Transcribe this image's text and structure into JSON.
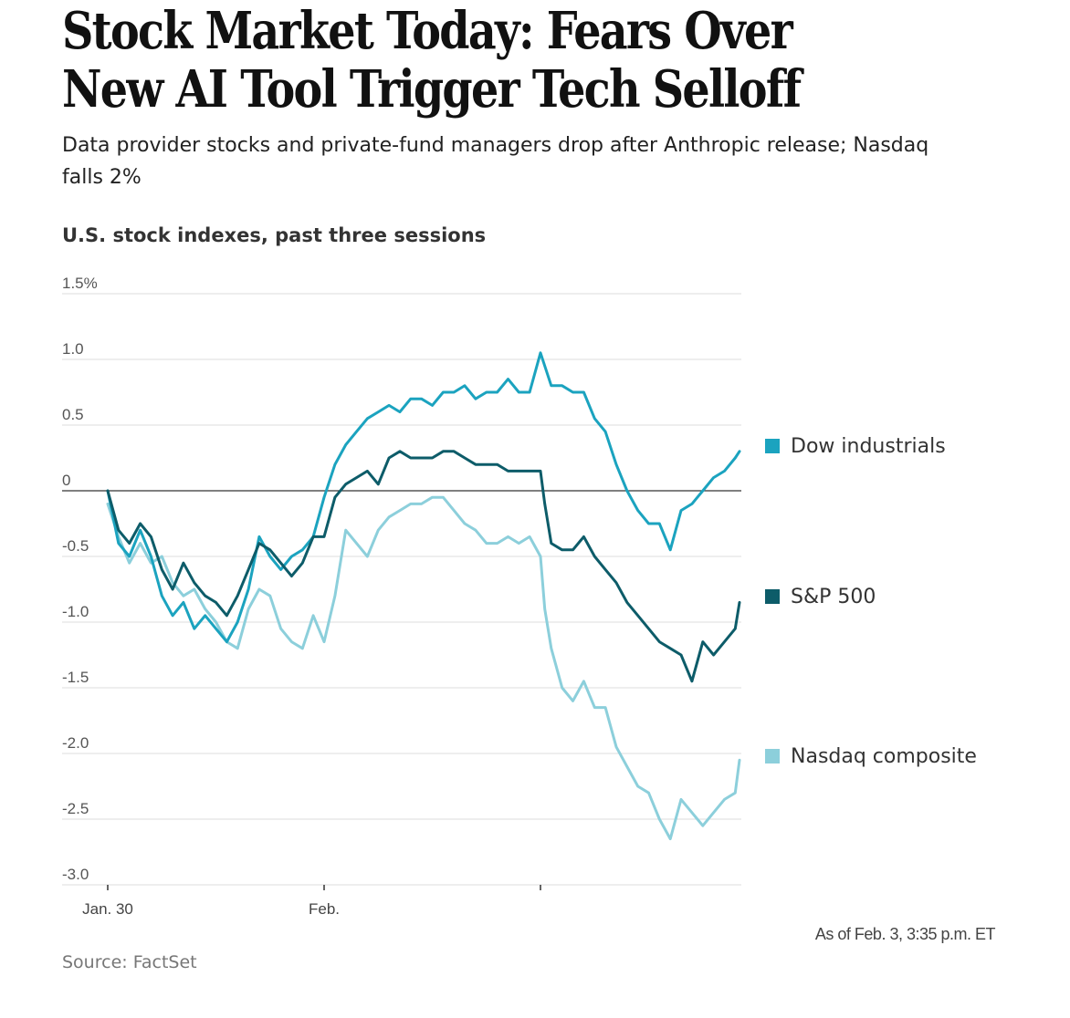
{
  "headline": "Stock Market Today: Fears Over New AI Tool Trigger Tech Selloff",
  "dek": "Data provider stocks and private-fund managers drop after Anthropic release; Nasdaq falls 2%",
  "note": "As of Feb. 3, 3:35 p.m. ET",
  "source": "Source: FactSet",
  "chart_data": {
    "type": "line",
    "title": "U.S. stock indexes, past three sessions",
    "xlabel": "",
    "ylabel": "",
    "ylim": [
      -3.0,
      1.5
    ],
    "yticks": [
      1.5,
      1.0,
      0.5,
      0,
      -0.5,
      -1.0,
      -1.5,
      -2.0,
      -2.5,
      -3.0
    ],
    "ytick_labels": [
      "1.5%",
      "1.0",
      "0.5",
      "0",
      "-0.5",
      "-1.0",
      "-1.5",
      "-2.0",
      "-2.5",
      "-3.0"
    ],
    "xlim": [
      0,
      3
    ],
    "xticks": [
      0,
      1,
      2
    ],
    "xtick_labels": [
      "Jan. 30",
      "Feb.",
      ""
    ],
    "grid": true,
    "legend": "right",
    "series": [
      {
        "name": "Dow industrials",
        "color": "#1ba3bf",
        "x": [
          0,
          0.05,
          0.1,
          0.15,
          0.2,
          0.25,
          0.3,
          0.35,
          0.4,
          0.45,
          0.5,
          0.55,
          0.6,
          0.65,
          0.7,
          0.75,
          0.8,
          0.85,
          0.9,
          0.95,
          1.0,
          1.05,
          1.1,
          1.15,
          1.2,
          1.25,
          1.3,
          1.35,
          1.4,
          1.45,
          1.5,
          1.55,
          1.6,
          1.65,
          1.7,
          1.75,
          1.8,
          1.85,
          1.9,
          1.95,
          2.0,
          2.02,
          2.05,
          2.1,
          2.15,
          2.2,
          2.25,
          2.3,
          2.35,
          2.4,
          2.45,
          2.5,
          2.55,
          2.6,
          2.65,
          2.7,
          2.75,
          2.8,
          2.85,
          2.9,
          2.92
        ],
        "values": [
          0.0,
          -0.4,
          -0.5,
          -0.3,
          -0.5,
          -0.8,
          -0.95,
          -0.85,
          -1.05,
          -0.95,
          -1.05,
          -1.15,
          -1.0,
          -0.75,
          -0.35,
          -0.5,
          -0.6,
          -0.5,
          -0.45,
          -0.35,
          -0.05,
          0.2,
          0.35,
          0.45,
          0.55,
          0.6,
          0.65,
          0.6,
          0.7,
          0.7,
          0.65,
          0.75,
          0.75,
          0.8,
          0.7,
          0.75,
          0.75,
          0.85,
          0.75,
          0.75,
          1.05,
          0.95,
          0.8,
          0.8,
          0.75,
          0.75,
          0.55,
          0.45,
          0.2,
          0.0,
          -0.15,
          -0.25,
          -0.25,
          -0.45,
          -0.15,
          -0.1,
          0.0,
          0.1,
          0.15,
          0.25,
          0.3
        ]
      },
      {
        "name": "S&P 500",
        "color": "#0d5c69",
        "x": [
          0,
          0.05,
          0.1,
          0.15,
          0.2,
          0.25,
          0.3,
          0.35,
          0.4,
          0.45,
          0.5,
          0.55,
          0.6,
          0.65,
          0.7,
          0.75,
          0.8,
          0.85,
          0.9,
          0.95,
          1.0,
          1.05,
          1.1,
          1.15,
          1.2,
          1.25,
          1.3,
          1.35,
          1.4,
          1.45,
          1.5,
          1.55,
          1.6,
          1.65,
          1.7,
          1.75,
          1.8,
          1.85,
          1.9,
          1.95,
          2.0,
          2.02,
          2.05,
          2.1,
          2.15,
          2.2,
          2.25,
          2.3,
          2.35,
          2.4,
          2.45,
          2.5,
          2.55,
          2.6,
          2.65,
          2.7,
          2.75,
          2.8,
          2.85,
          2.9,
          2.92
        ],
        "values": [
          0.0,
          -0.3,
          -0.4,
          -0.25,
          -0.35,
          -0.6,
          -0.75,
          -0.55,
          -0.7,
          -0.8,
          -0.85,
          -0.95,
          -0.8,
          -0.6,
          -0.4,
          -0.45,
          -0.55,
          -0.65,
          -0.55,
          -0.35,
          -0.35,
          -0.05,
          0.05,
          0.1,
          0.15,
          0.05,
          0.25,
          0.3,
          0.25,
          0.25,
          0.25,
          0.3,
          0.3,
          0.25,
          0.2,
          0.2,
          0.2,
          0.15,
          0.15,
          0.15,
          0.15,
          -0.1,
          -0.4,
          -0.45,
          -0.45,
          -0.35,
          -0.5,
          -0.6,
          -0.7,
          -0.85,
          -0.95,
          -1.05,
          -1.15,
          -1.2,
          -1.25,
          -1.45,
          -1.15,
          -1.25,
          -1.15,
          -1.05,
          -0.85
        ]
      },
      {
        "name": "Nasdaq composite",
        "color": "#8ccfdb",
        "x": [
          0,
          0.05,
          0.1,
          0.15,
          0.2,
          0.25,
          0.3,
          0.35,
          0.4,
          0.45,
          0.5,
          0.55,
          0.6,
          0.65,
          0.7,
          0.75,
          0.8,
          0.85,
          0.9,
          0.95,
          1.0,
          1.05,
          1.1,
          1.15,
          1.2,
          1.25,
          1.3,
          1.35,
          1.4,
          1.45,
          1.5,
          1.55,
          1.6,
          1.65,
          1.7,
          1.75,
          1.8,
          1.85,
          1.9,
          1.95,
          2.0,
          2.02,
          2.05,
          2.1,
          2.15,
          2.2,
          2.25,
          2.3,
          2.35,
          2.4,
          2.45,
          2.5,
          2.55,
          2.6,
          2.65,
          2.7,
          2.75,
          2.8,
          2.85,
          2.9,
          2.92
        ],
        "values": [
          -0.1,
          -0.35,
          -0.55,
          -0.4,
          -0.55,
          -0.5,
          -0.7,
          -0.8,
          -0.75,
          -0.9,
          -1.0,
          -1.15,
          -1.2,
          -0.9,
          -0.75,
          -0.8,
          -1.05,
          -1.15,
          -1.2,
          -0.95,
          -1.15,
          -0.8,
          -0.3,
          -0.4,
          -0.5,
          -0.3,
          -0.2,
          -0.15,
          -0.1,
          -0.1,
          -0.05,
          -0.05,
          -0.15,
          -0.25,
          -0.3,
          -0.4,
          -0.4,
          -0.35,
          -0.4,
          -0.35,
          -0.5,
          -0.9,
          -1.2,
          -1.5,
          -1.6,
          -1.45,
          -1.65,
          -1.65,
          -1.95,
          -2.1,
          -2.25,
          -2.3,
          -2.5,
          -2.65,
          -2.35,
          -2.45,
          -2.55,
          -2.45,
          -2.35,
          -2.3,
          -2.05
        ]
      }
    ]
  }
}
